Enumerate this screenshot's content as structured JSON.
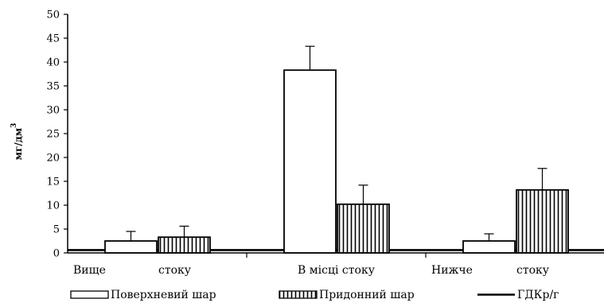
{
  "chart_data": {
    "type": "bar",
    "categories": [
      "Вище      стоку",
      "В місці стоку",
      "Нижче      стоку"
    ],
    "category_labels": [
      [
        "Вище",
        "стоку"
      ],
      [
        "В місці стоку"
      ],
      [
        "Нижче",
        "стоку"
      ]
    ],
    "series": [
      {
        "name": "Поверхневий шар",
        "values": [
          2.5,
          38.3,
          2.5
        ],
        "errors": [
          2.0,
          5.0,
          1.5
        ],
        "pattern": "none"
      },
      {
        "name": "Придонний шар",
        "values": [
          3.3,
          10.2,
          13.2
        ],
        "errors": [
          2.3,
          4.0,
          4.5
        ],
        "pattern": "vertical-hatch"
      }
    ],
    "reference_line": {
      "name": "ГДКр/г",
      "value": 0.6
    },
    "ylabel": "мг/дм",
    "ylabel_superscript": "3",
    "ylim": [
      0,
      50
    ],
    "yticks": [
      0,
      5,
      10,
      15,
      20,
      25,
      30,
      35,
      40,
      45,
      50
    ],
    "grid": false,
    "legend_position": "bottom",
    "colors": {
      "bar_fill": "#ffffff",
      "stroke": "#000000",
      "hatch": "#000000"
    }
  }
}
